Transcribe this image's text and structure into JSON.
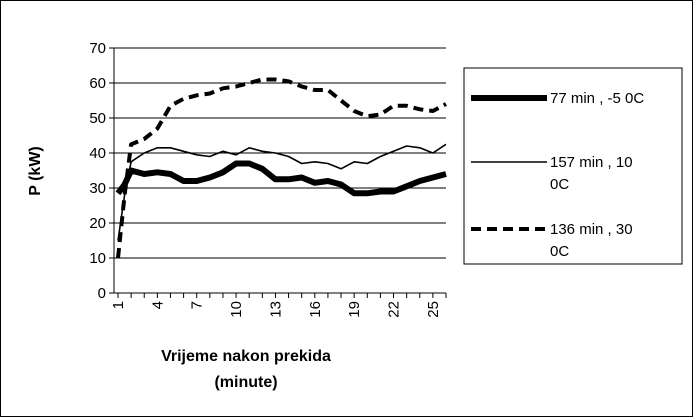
{
  "chart_data": {
    "type": "line",
    "title": "",
    "xlabel": [
      "Vrijeme nakon prekida",
      "(minute)"
    ],
    "ylabel": "P (kW)",
    "ylim": [
      0,
      70
    ],
    "yticks": [
      "0",
      "10",
      "20",
      "30",
      "40",
      "50",
      "60",
      "70"
    ],
    "xticks": [
      "1",
      "4",
      "7",
      "10",
      "13",
      "16",
      "19",
      "22",
      "25"
    ],
    "grid": true,
    "legend_position": "right",
    "x": [
      1,
      1.5,
      2,
      3,
      4,
      5,
      6,
      7,
      8,
      9,
      10,
      11,
      12,
      13,
      14,
      15,
      16,
      17,
      18,
      19,
      20,
      21,
      22,
      23,
      24,
      25,
      26
    ],
    "series": [
      {
        "name_lines": [
          "77 min , -5 0C"
        ],
        "style": "thick",
        "color": "#000000",
        "values": [
          28.5,
          31,
          35,
          34,
          34.5,
          34,
          32,
          32,
          33,
          34.5,
          37,
          37,
          35.5,
          32.5,
          32.5,
          33,
          31.5,
          32,
          31,
          28.5,
          28.5,
          29,
          29,
          30.5,
          32,
          33,
          34
        ]
      },
      {
        "name_lines": [
          "157 min , 10",
          "0C"
        ],
        "style": "thin",
        "color": "#000000",
        "values": [
          15,
          28,
          37.5,
          40,
          41.5,
          41.5,
          40.5,
          39.5,
          39,
          40.5,
          39.5,
          41.5,
          40.5,
          40,
          39,
          37,
          37.5,
          37,
          35.5,
          37.5,
          37,
          39,
          40.5,
          42,
          41.5,
          40,
          42.5
        ]
      },
      {
        "name_lines": [
          "136 min , 30",
          "0C"
        ],
        "style": "dashed",
        "color": "#000000",
        "values": [
          10,
          28,
          42.5,
          44,
          47,
          53.5,
          55.5,
          56.5,
          57,
          58.5,
          59,
          60,
          61,
          61,
          60.5,
          59,
          58,
          58,
          55,
          52,
          50.5,
          51,
          53.5,
          53.5,
          52.5,
          52,
          54
        ]
      }
    ]
  }
}
